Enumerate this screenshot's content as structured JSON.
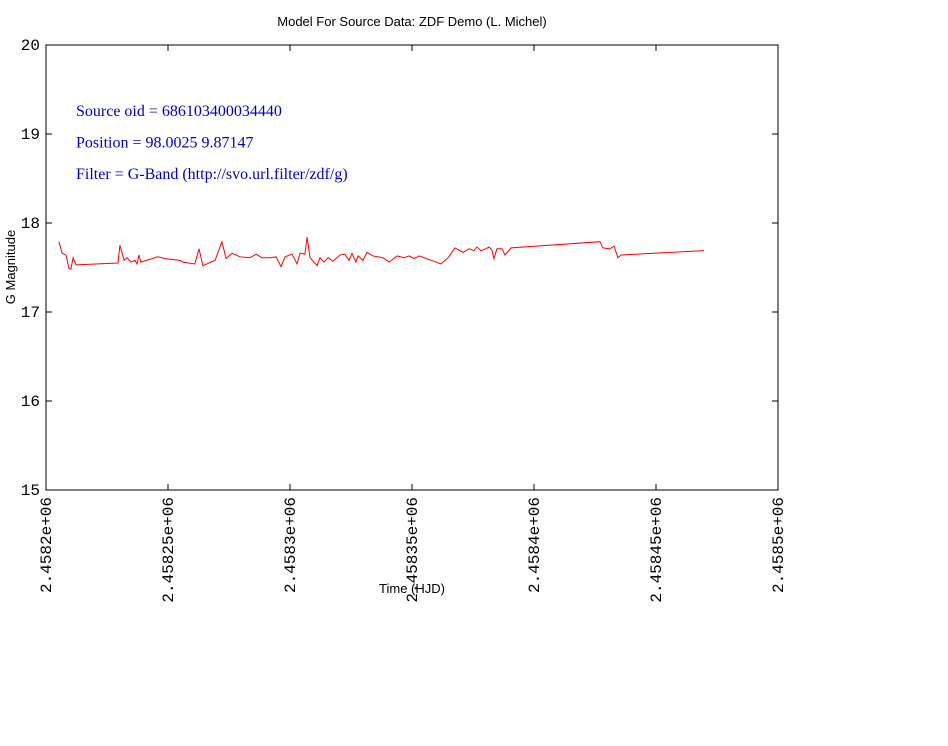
{
  "chart_data": {
    "type": "line",
    "title": "Model For Source Data: ZDF Demo (L. Michel)",
    "x_label": "Time (HJD)",
    "y_label": "G Magnitude",
    "annotations": [
      "Source oid = 686103400034440",
      "Position = 98.0025 9.87147",
      "Filter = G-Band (http://svo.url.filter/zdf/g)"
    ],
    "annotation_color": "#0000cc",
    "xlim": [
      2458200,
      2458500
    ],
    "xticks": [
      {
        "value": 2458200,
        "label": "2.4582e+06"
      },
      {
        "value": 2458250,
        "label": "2.45825e+06"
      },
      {
        "value": 2458300,
        "label": "2.4583e+06"
      },
      {
        "value": 2458350,
        "label": "2.45835e+06"
      },
      {
        "value": 2458400,
        "label": "2.4584e+06"
      },
      {
        "value": 2458450,
        "label": "2.45845e+06"
      },
      {
        "value": 2458500,
        "label": "2.4585e+06"
      }
    ],
    "ylim": [
      15,
      20
    ],
    "yticks": [
      15,
      16,
      17,
      18,
      19,
      20
    ],
    "grid": false,
    "series": [
      {
        "color": "#ff0000",
        "x": [
          2458205.3,
          2458206.6,
          2458208.2,
          2458209.4,
          2458210.2,
          2458211.1,
          2458212.3,
          2458229.5,
          2458230.3,
          2458232.0,
          2458233.2,
          2458234.8,
          2458236.5,
          2458237.3,
          2458238.1,
          2458238.9,
          2458245.9,
          2458248.8,
          2458254.9,
          2458256.1,
          2458261.0,
          2458262.7,
          2458264.3,
          2458269.3,
          2458272.1,
          2458273.8,
          2458276.2,
          2458279.5,
          2458283.6,
          2458286.1,
          2458288.5,
          2458291.8,
          2458294.3,
          2458296.3,
          2458298.0,
          2458300.8,
          2458302.9,
          2458304.1,
          2458306.1,
          2458307.0,
          2458308.2,
          2458311.1,
          2458312.3,
          2458313.9,
          2458315.6,
          2458317.6,
          2458320.5,
          2458322.5,
          2458324.2,
          2458325.4,
          2458327.0,
          2458327.9,
          2458329.9,
          2458331.6,
          2458334.0,
          2458338.1,
          2458340.6,
          2458343.9,
          2458346.7,
          2458348.8,
          2458350.8,
          2458352.9,
          2458361.9,
          2458364.8,
          2458367.6,
          2458370.9,
          2458373.4,
          2458375.4,
          2458376.6,
          2458378.3,
          2458379.5,
          2458381.6,
          2458382.8,
          2458383.6,
          2458384.8,
          2458386.9,
          2458388.1,
          2458390.6,
          2458427.0,
          2458428.3,
          2458431.1,
          2458432.8,
          2458434.4,
          2458435.7,
          2458469.7
        ],
        "values": [
          17.79,
          17.66,
          17.64,
          17.49,
          17.48,
          17.61,
          17.53,
          17.55,
          17.75,
          17.58,
          17.61,
          17.56,
          17.58,
          17.54,
          17.64,
          17.56,
          17.62,
          17.6,
          17.58,
          17.56,
          17.54,
          17.71,
          17.52,
          17.58,
          17.79,
          17.6,
          17.66,
          17.62,
          17.61,
          17.65,
          17.61,
          17.61,
          17.62,
          17.51,
          17.62,
          17.65,
          17.54,
          17.66,
          17.65,
          17.84,
          17.61,
          17.52,
          17.61,
          17.56,
          17.61,
          17.57,
          17.64,
          17.65,
          17.58,
          17.66,
          17.56,
          17.63,
          17.58,
          17.67,
          17.63,
          17.61,
          17.56,
          17.63,
          17.61,
          17.63,
          17.6,
          17.63,
          17.54,
          17.61,
          17.72,
          17.67,
          17.71,
          17.69,
          17.73,
          17.69,
          17.7,
          17.73,
          17.69,
          17.6,
          17.71,
          17.71,
          17.64,
          17.72,
          17.79,
          17.72,
          17.71,
          17.74,
          17.61,
          17.64,
          17.69
        ]
      }
    ]
  }
}
